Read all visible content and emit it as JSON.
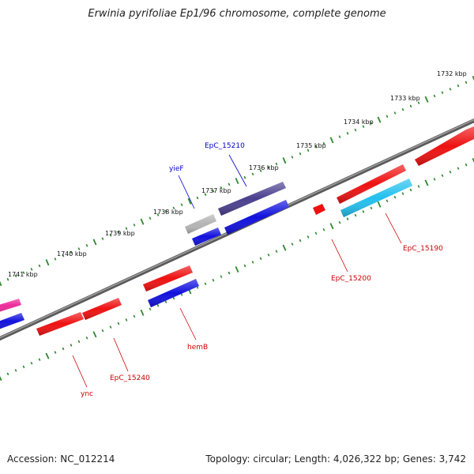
{
  "title": "Erwinia pyrifoliae Ep1/96 chromosome, complete genome",
  "footer": {
    "accession": "Accession: NC_012214",
    "summary": "Topology: circular; Length: 4,026,322 bp; Genes: 3,742"
  },
  "scale": {
    "ticks": [
      {
        "label": "1732 kbp"
      },
      {
        "label": "1733 kbp"
      },
      {
        "label": "1734 kbp"
      },
      {
        "label": "1735 kbp"
      },
      {
        "label": "1736 kbp"
      },
      {
        "label": "1737 kbp"
      },
      {
        "label": "1738 kbp"
      },
      {
        "label": "1739 kbp"
      },
      {
        "label": "1740 kbp"
      },
      {
        "label": "1741 kbp"
      }
    ]
  },
  "gene_labels": [
    {
      "name": "EpC_15210",
      "color": "#0000cc"
    },
    {
      "name": "yieF",
      "color": "#0000cc"
    },
    {
      "name": "EpC_15200",
      "color": "#cc0000"
    },
    {
      "name": "EpC_15190",
      "color": "#cc0000"
    },
    {
      "name": "hemB",
      "color": "#cc0000"
    },
    {
      "name": "EpC_15240",
      "color": "#cc0000"
    },
    {
      "name": "ync",
      "color": "#cc0000"
    }
  ],
  "colors": {
    "backbone": "#7a7a7a",
    "ticks": "#2a8a2a",
    "forward_gene": "#ee1111",
    "reverse_gene": "#1111dd",
    "purple_gene": "#4a3f8f",
    "cyan_gene": "#22c0ee",
    "grey_gene": "#b4b4b4",
    "pink_gene": "#ee2a9a"
  }
}
